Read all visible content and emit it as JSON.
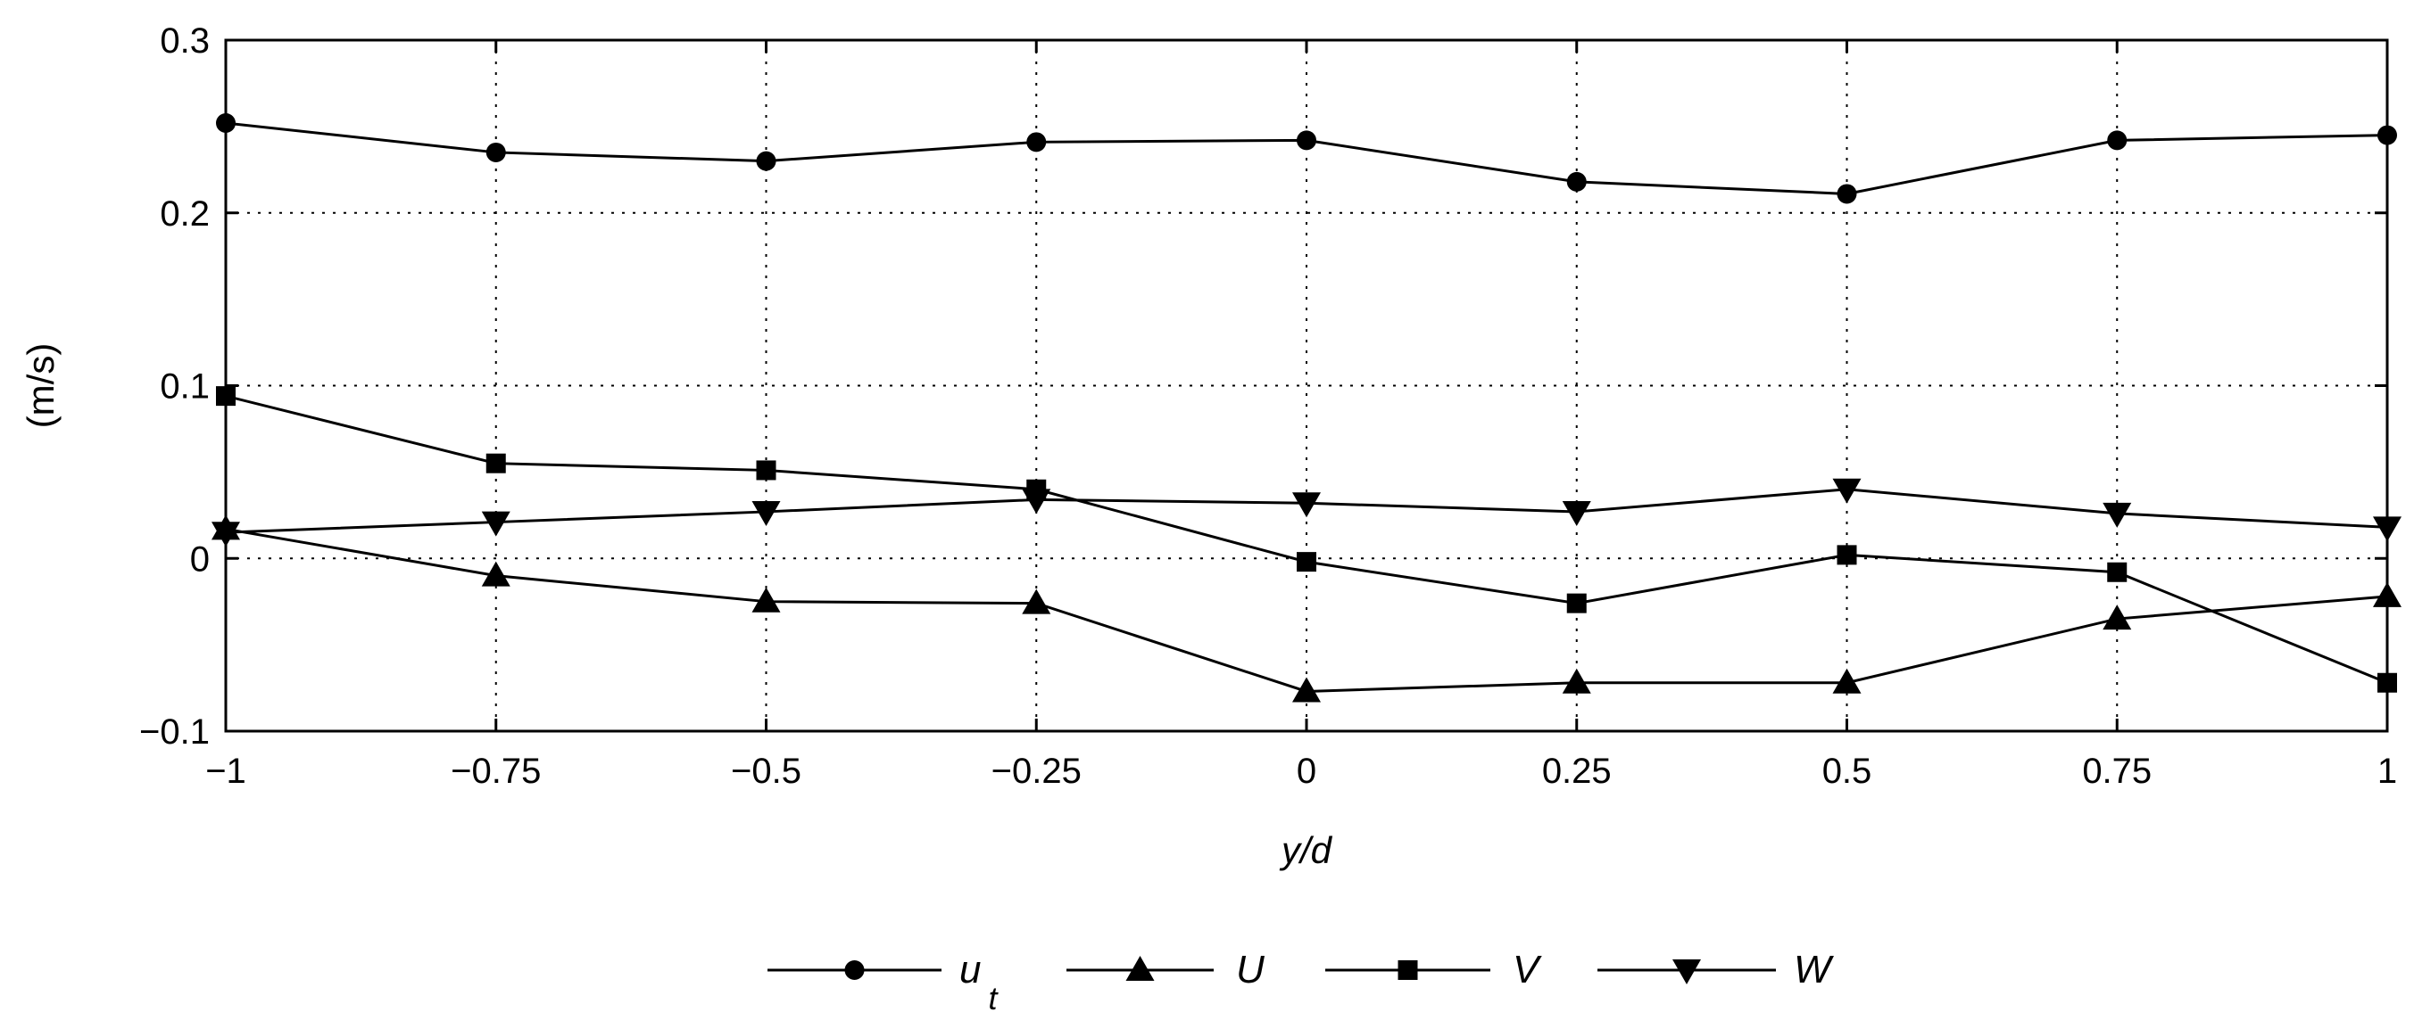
{
  "chart_data": {
    "type": "line",
    "xlabel": "y/d",
    "ylabel": "(m/s)",
    "xlim": [
      -1,
      1
    ],
    "ylim": [
      -0.1,
      0.3
    ],
    "x_ticks": [
      -1,
      -0.75,
      -0.5,
      -0.25,
      0,
      0.25,
      0.5,
      0.75,
      1
    ],
    "x_tick_labels": [
      "−1",
      "−0.75",
      "−0.5",
      "−0.25",
      "0",
      "0.25",
      "0.5",
      "0.75",
      "1"
    ],
    "y_ticks": [
      -0.1,
      0,
      0.1,
      0.2,
      0.3
    ],
    "y_tick_labels": [
      "−0.1",
      "0",
      "0.1",
      "0.2",
      "0.3"
    ],
    "grid": true,
    "legend_position": "bottom",
    "x": [
      -1,
      -0.75,
      -0.5,
      -0.25,
      0,
      0.25,
      0.5,
      0.75,
      1
    ],
    "series": [
      {
        "name": "u",
        "name_subscript": "t",
        "marker": "circle",
        "values": [
          0.252,
          0.235,
          0.23,
          0.241,
          0.242,
          0.218,
          0.211,
          0.242,
          0.245
        ]
      },
      {
        "name": "U",
        "marker": "triangle-up",
        "values": [
          0.017,
          -0.01,
          -0.025,
          -0.026,
          -0.077,
          -0.072,
          -0.072,
          -0.035,
          -0.022
        ]
      },
      {
        "name": "V",
        "marker": "square",
        "values": [
          0.094,
          0.055,
          0.051,
          0.04,
          -0.002,
          -0.026,
          0.002,
          -0.008,
          -0.072
        ]
      },
      {
        "name": "W",
        "marker": "triangle-down",
        "values": [
          0.015,
          0.021,
          0.027,
          0.034,
          0.032,
          0.027,
          0.04,
          0.026,
          0.018
        ]
      }
    ]
  }
}
